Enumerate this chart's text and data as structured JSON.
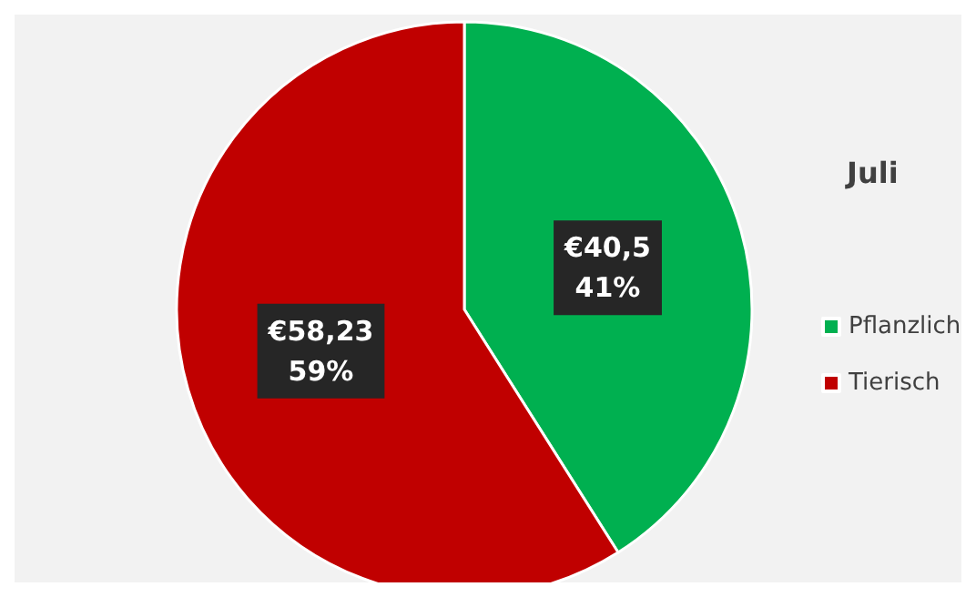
{
  "chart_data": {
    "type": "pie",
    "title": "Juli",
    "categories": [
      "Pflanzlich",
      "Tierisch"
    ],
    "values": [
      40.5,
      58.23
    ],
    "colors": [
      "#00b050",
      "#c00000"
    ],
    "value_labels": [
      "€40,5\n41%",
      "€58,23\n59%"
    ],
    "legend": "right"
  }
}
